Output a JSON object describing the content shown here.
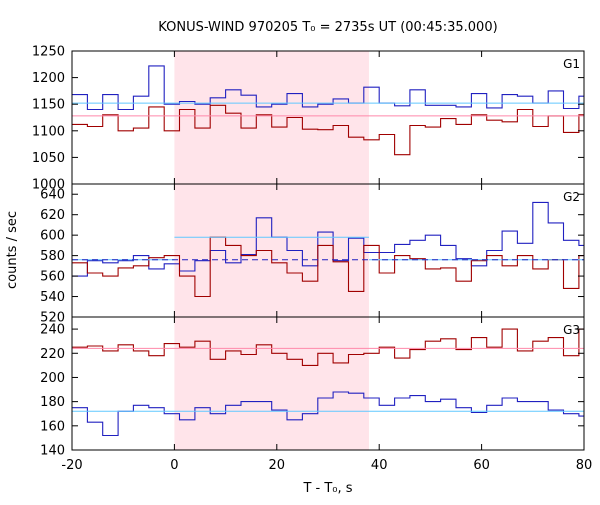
{
  "chart_data": {
    "type": "line",
    "title": "KONUS-WIND 970205 T₀ = 2735s UT (00:45:35.000)",
    "xlabel": "T - T₀, s",
    "ylabel": "counts / sec",
    "xlim": [
      -20,
      80
    ],
    "x_ticks": [
      -20,
      0,
      20,
      40,
      60,
      80
    ],
    "x_tick_labels": [
      "-20",
      "0",
      "20",
      "40",
      "60",
      "80"
    ],
    "highlight_interval": [
      0,
      38
    ],
    "colors": {
      "red_series": "#a00000",
      "blue_series": "#2020c0",
      "red_background": "#ff88aa",
      "blue_background": "#60c8ff",
      "highlight": "#ffe4ea"
    },
    "panels": [
      {
        "label": "G1",
        "ylim": [
          1000,
          1250
        ],
        "y_ticks": [
          1000,
          1050,
          1100,
          1150,
          1200,
          1250
        ],
        "bin_width": 3,
        "bin_start": -20,
        "series": [
          {
            "color_key": "blue",
            "values": [
              1168,
              1140,
              1168,
              1140,
              1165,
              1222,
              1150,
              1155,
              1150,
              1162,
              1177,
              1167,
              1145,
              1150,
              1170,
              1145,
              1150,
              1160,
              1152,
              1182,
              1152,
              1147,
              1177,
              1148,
              1148,
              1145,
              1170,
              1143,
              1168,
              1165,
              1152,
              1175,
              1142,
              1165,
              1150,
              1160,
              1148,
              1178,
              1163,
              1160,
              1150,
              1155,
              1160,
              1192,
              1168,
              1167,
              1182,
              1210,
              1160,
              1160,
              1158
            ]
          },
          {
            "color_key": "red",
            "values": [
              1112,
              1108,
              1130,
              1100,
              1105,
              1145,
              1100,
              1140,
              1105,
              1148,
              1133,
              1105,
              1130,
              1107,
              1125,
              1103,
              1102,
              1110,
              1088,
              1083,
              1093,
              1055,
              1110,
              1107,
              1123,
              1112,
              1130,
              1120,
              1117,
              1140,
              1108,
              1128,
              1097,
              1130,
              1117,
              1137,
              1148,
              1117,
              1130,
              1105,
              1135,
              1107,
              1148,
              1123,
              1112,
              1137,
              1112,
              1130,
              1112,
              1117,
              1121
            ]
          },
          {
            "color_key": "blue_background",
            "level": 1152
          },
          {
            "color_key": "red_background",
            "level": 1128
          }
        ]
      },
      {
        "label": "G2",
        "ylim": [
          520,
          650
        ],
        "y_ticks": [
          520,
          540,
          560,
          580,
          600,
          620,
          640
        ],
        "bin_width": 3,
        "bin_start": -20,
        "series": [
          {
            "color_key": "blue",
            "values": [
              560,
              575,
              573,
              575,
              580,
              567,
              572,
              565,
              575,
              585,
              573,
              581,
              617,
              598,
              585,
              570,
              603,
              575,
              597,
              583,
              583,
              591,
              595,
              600,
              590,
              577,
              570,
              585,
              604,
              592,
              632,
              612,
              595,
              590,
              575,
              563,
              578,
              570,
              576,
              570,
              575,
              577,
              585,
              587,
              578,
              570,
              565,
              583,
              593,
              577,
              570
            ]
          },
          {
            "color_key": "red",
            "values": [
              573,
              563,
              560,
              568,
              570,
              578,
              580,
              560,
              540,
              598,
              590,
              580,
              585,
              573,
              563,
              555,
              590,
              574,
              545,
              590,
              563,
              580,
              577,
              567,
              568,
              555,
              575,
              580,
              570,
              580,
              567,
              576,
              548,
              580,
              575,
              590,
              588,
              565,
              583,
              560,
              580,
              600,
              592,
              580,
              577,
              583,
              572,
              580,
              583,
              587,
              573
            ]
          },
          {
            "color_key": "blue_background",
            "level": 598,
            "x_range": [
              0,
              38
            ]
          },
          {
            "color_key": "blue_background",
            "level": 576,
            "x_range": [
              -20,
              0
            ]
          },
          {
            "color_key": "blue_background",
            "level": 576,
            "x_range": [
              38,
              80
            ]
          },
          {
            "color_key": "red_background",
            "level": 576,
            "dashed": true
          }
        ]
      },
      {
        "label": "G3",
        "ylim": [
          140,
          250
        ],
        "y_ticks": [
          140,
          160,
          180,
          200,
          220,
          240
        ],
        "bin_width": 3,
        "bin_start": -20,
        "series": [
          {
            "color_key": "blue",
            "values": [
              175,
              163,
              152,
              172,
              177,
              175,
              170,
              165,
              175,
              170,
              177,
              180,
              180,
              173,
              165,
              170,
              183,
              188,
              187,
              183,
              177,
              183,
              185,
              180,
              182,
              175,
              171,
              177,
              183,
              180,
              180,
              173,
              170,
              168,
              177,
              182,
              170,
              160,
              172,
              174,
              175,
              170,
              168,
              177,
              170,
              175,
              178,
              175,
              177,
              170,
              181
            ]
          },
          {
            "color_key": "red",
            "values": [
              225,
              226,
              222,
              227,
              222,
              218,
              228,
              225,
              230,
              215,
              222,
              219,
              227,
              220,
              215,
              210,
              220,
              212,
              219,
              220,
              225,
              216,
              223,
              230,
              232,
              223,
              233,
              225,
              240,
              222,
              230,
              233,
              218,
              240,
              236,
              225,
              230,
              222,
              226,
              219,
              215,
              205,
              226,
              219,
              215,
              215,
              238,
              225,
              231,
              232,
              228
            ]
          },
          {
            "color_key": "blue_background",
            "level": 172
          },
          {
            "color_key": "red_background",
            "level": 224
          }
        ]
      }
    ]
  }
}
